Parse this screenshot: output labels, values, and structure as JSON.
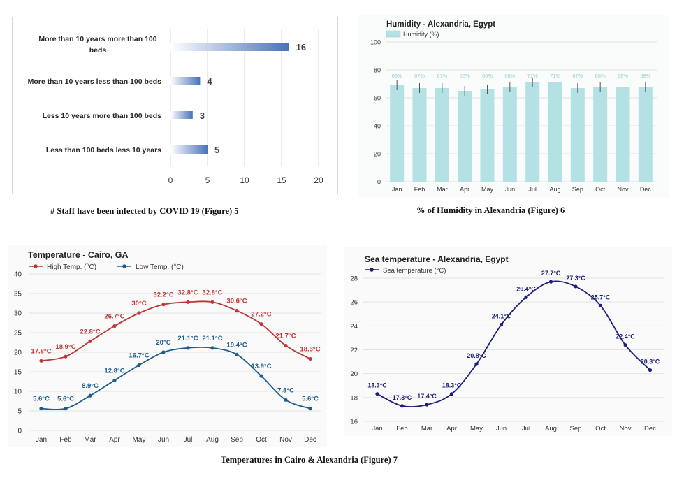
{
  "captions": {
    "fig5": "# Staff have been infected by COVID 19 (Figure) 5",
    "fig6": "% of Humidity in Alexandria (Figure) 6",
    "fig7": "Temperatures in Cairo & Alexandria (Figure) 7"
  },
  "chart_data": [
    {
      "type": "bar",
      "orientation": "horizontal",
      "title": "",
      "categories": [
        "More than 10 years more than 100 beds",
        "More than 10 years less than 100 beds",
        "Less 10 years more than 100 beds",
        "Less than 100 beds less 10 years"
      ],
      "category_lines": [
        [
          "More than 10 years more than 100",
          "beds"
        ],
        [
          "More than 10 years less than 100 beds"
        ],
        [
          "Less 10 years more than 100 beds"
        ],
        [
          "Less than 100 beds less 10 years"
        ]
      ],
      "values": [
        16,
        4,
        3,
        5
      ],
      "data_labels": [
        "16",
        "4",
        "3",
        "5"
      ],
      "xlim": [
        0,
        20
      ],
      "xticks": [
        "0",
        "5",
        "10",
        "15",
        "20"
      ],
      "grid": true,
      "color": "#4a72b8"
    },
    {
      "type": "bar",
      "title": "Humidity - Alexandria, Egypt",
      "legend": [
        "Humidity (%)"
      ],
      "categories": [
        "Jan",
        "Feb",
        "Mar",
        "Apr",
        "May",
        "Jun",
        "Jul",
        "Aug",
        "Sep",
        "Oct",
        "Nov",
        "Dec"
      ],
      "values": [
        69,
        67,
        67,
        65,
        66,
        68,
        71,
        71,
        67,
        68,
        68,
        68
      ],
      "data_labels": [
        "69%",
        "67%",
        "67%",
        "65%",
        "66%",
        "68%",
        "71%",
        "71%",
        "67%",
        "68%",
        "68%",
        "68%"
      ],
      "ylim": [
        0,
        100
      ],
      "yticks": [
        "0",
        "20",
        "40",
        "60",
        "80",
        "100"
      ],
      "grid": true,
      "color": "#b3e1e4"
    },
    {
      "type": "line",
      "title": "Temperature - Cairo, GA",
      "categories": [
        "Jan",
        "Feb",
        "Mar",
        "Apr",
        "May",
        "Jun",
        "Jul",
        "Aug",
        "Sep",
        "Oct",
        "Nov",
        "Dec"
      ],
      "series": [
        {
          "name": "High Temp. (°C)",
          "color": "#c03535",
          "values": [
            17.8,
            18.9,
            22.8,
            26.7,
            30,
            32.2,
            32.8,
            32.8,
            30.6,
            27.2,
            21.7,
            18.3
          ],
          "labels": [
            "17.8°C",
            "18.9°C",
            "22.8°C",
            "26.7°C",
            "30°C",
            "32.2°C",
            "32.8°C",
            "32.8°C",
            "30.6°C",
            "27.2°C",
            "21.7°C",
            "18.3°C"
          ]
        },
        {
          "name": "Low Temp. (°C)",
          "color": "#1e5c8c",
          "values": [
            5.6,
            5.6,
            8.9,
            12.8,
            16.7,
            20,
            21.1,
            21.1,
            19.4,
            13.9,
            7.8,
            5.6
          ],
          "labels": [
            "5.6°C",
            "5.6°C",
            "8.9°C",
            "12.8°C",
            "16.7°C",
            "20°C",
            "21.1°C",
            "21.1°C",
            "19.4°C",
            "13.9°C",
            "7.8°C",
            "5.6°C"
          ]
        }
      ],
      "ylim": [
        0,
        40
      ],
      "yticks": [
        "0",
        "5",
        "10",
        "15",
        "20",
        "25",
        "30",
        "35",
        "40"
      ],
      "grid": true
    },
    {
      "type": "line",
      "title": "Sea temperature - Alexandria, Egypt",
      "categories": [
        "Jan",
        "Feb",
        "Mar",
        "Apr",
        "May",
        "Jun",
        "Jul",
        "Aug",
        "Sep",
        "Oct",
        "Nov",
        "Dec"
      ],
      "series": [
        {
          "name": "Sea temperature (°C)",
          "color": "#1c1f7a",
          "values": [
            18.3,
            17.3,
            17.4,
            18.3,
            20.8,
            24.1,
            26.4,
            27.7,
            27.3,
            25.7,
            22.4,
            20.3
          ],
          "labels": [
            "18.3°C",
            "17.3°C",
            "17.4°C",
            "18.3°C",
            "20.8°C",
            "24.1°C",
            "26.4°C",
            "27.7°C",
            "27.3°C",
            "25.7°C",
            "22.4°C",
            "20.3°C"
          ]
        }
      ],
      "ylim": [
        16,
        28
      ],
      "yticks": [
        "16",
        "18",
        "20",
        "22",
        "24",
        "26",
        "28"
      ],
      "grid": true
    }
  ]
}
